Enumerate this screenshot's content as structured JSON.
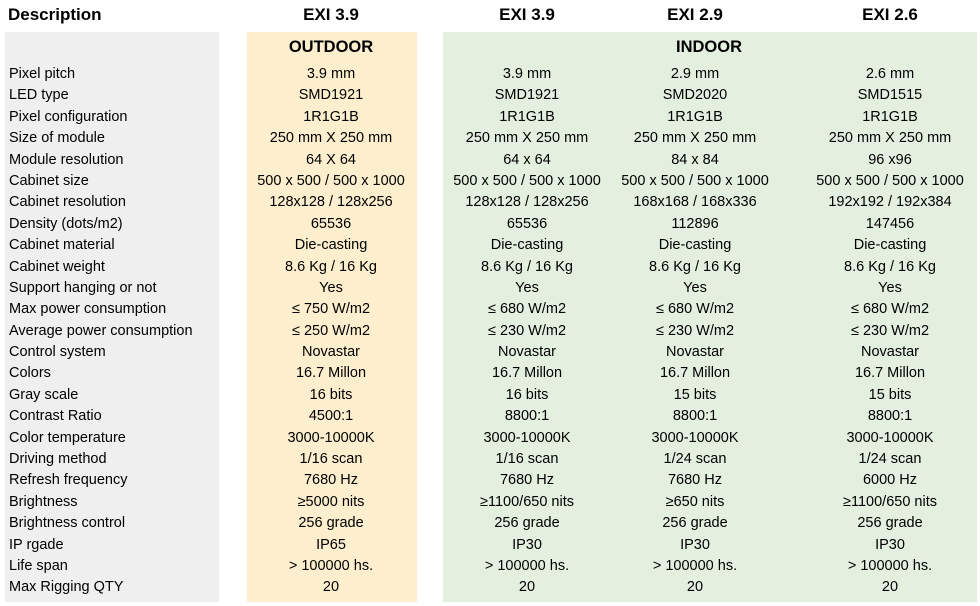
{
  "header": {
    "description": "Description",
    "columns": [
      "EXI 3.9",
      "EXI 3.9",
      "EXI 2.9",
      "EXI 2.6"
    ]
  },
  "groups": {
    "outdoor": "OUTDOOR",
    "indoor": "INDOOR"
  },
  "rows": [
    {
      "label": "Pixel pitch",
      "values": [
        "3.9 mm",
        "3.9 mm",
        "2.9 mm",
        "2.6 mm"
      ]
    },
    {
      "label": "LED type",
      "values": [
        "SMD1921",
        "SMD1921",
        "SMD2020",
        "SMD1515"
      ]
    },
    {
      "label": "Pixel configuration",
      "values": [
        "1R1G1B",
        "1R1G1B",
        "1R1G1B",
        "1R1G1B"
      ]
    },
    {
      "label": "Size of module",
      "values": [
        "250 mm X 250 mm",
        "250 mm X 250 mm",
        "250 mm X 250 mm",
        "250 mm X 250 mm"
      ]
    },
    {
      "label": "Module resolution",
      "values": [
        "64 X 64",
        "64 x 64",
        "84 x 84",
        "96 x96"
      ]
    },
    {
      "label": "Cabinet size",
      "values": [
        "500 x 500 / 500 x 1000",
        "500 x 500 / 500 x 1000",
        "500 x 500 / 500 x 1000",
        "500 x 500 / 500 x 1000"
      ]
    },
    {
      "label": "Cabinet resolution",
      "values": [
        "128x128 / 128x256",
        "128x128 / 128x256",
        "168x168 / 168x336",
        "192x192 / 192x384"
      ]
    },
    {
      "label": "Density (dots/m2)",
      "values": [
        "65536",
        "65536",
        "112896",
        "147456"
      ]
    },
    {
      "label": "Cabinet material",
      "values": [
        "Die-casting",
        "Die-casting",
        "Die-casting",
        "Die-casting"
      ]
    },
    {
      "label": "Cabinet weight",
      "values": [
        "8.6 Kg / 16 Kg",
        "8.6 Kg / 16 Kg",
        "8.6 Kg / 16 Kg",
        "8.6 Kg / 16 Kg"
      ]
    },
    {
      "label": "Support hanging or not",
      "values": [
        "Yes",
        "Yes",
        "Yes",
        "Yes"
      ]
    },
    {
      "label": "Max power consumption",
      "values": [
        "≤ 750 W/m2",
        "≤ 680 W/m2",
        "≤ 680 W/m2",
        "≤ 680 W/m2"
      ]
    },
    {
      "label": "Average power consumption",
      "values": [
        "≤ 250 W/m2",
        "≤ 230 W/m2",
        "≤ 230 W/m2",
        "≤ 230 W/m2"
      ]
    },
    {
      "label": "Control system",
      "values": [
        "Novastar",
        "Novastar",
        "Novastar",
        "Novastar"
      ]
    },
    {
      "label": "Colors",
      "values": [
        "16.7 Millon",
        "16.7 Millon",
        "16.7 Millon",
        "16.7 Millon"
      ]
    },
    {
      "label": "Gray scale",
      "values": [
        "16 bits",
        "16 bits",
        "15 bits",
        "15 bits"
      ]
    },
    {
      "label": "Contrast Ratio",
      "values": [
        "4500:1",
        "8800:1",
        "8800:1",
        "8800:1"
      ]
    },
    {
      "label": "Color temperature",
      "values": [
        "3000-10000K",
        "3000-10000K",
        "3000-10000K",
        "3000-10000K"
      ]
    },
    {
      "label": "Driving method",
      "values": [
        "1/16 scan",
        "1/16 scan",
        "1/24 scan",
        "1/24 scan"
      ]
    },
    {
      "label": "Refresh frequency",
      "values": [
        "7680 Hz",
        "7680 Hz",
        "7680 Hz",
        "6000 Hz"
      ]
    },
    {
      "label": "Brightness",
      "values": [
        "≥5000 nits",
        "≥1100/650 nits",
        "≥650 nits",
        "≥1100/650 nits"
      ]
    },
    {
      "label": "Brightness control",
      "values": [
        "256 grade",
        "256 grade",
        "256 grade",
        "256 grade"
      ]
    },
    {
      "label": "IP rgade",
      "values": [
        "IP65",
        "IP30",
        "IP30",
        "IP30"
      ]
    },
    {
      "label": "Life span",
      "values": [
        "> 100000 hs.",
        "> 100000 hs.",
        "> 100000 hs.",
        "> 100000 hs."
      ]
    },
    {
      "label": "Max Rigging QTY",
      "values": [
        "20",
        "20",
        "20",
        "20"
      ]
    }
  ],
  "colors": {
    "description_bg": "#efefef",
    "outdoor_bg": "#fdefcd",
    "indoor_bg": "#e4f0df"
  }
}
